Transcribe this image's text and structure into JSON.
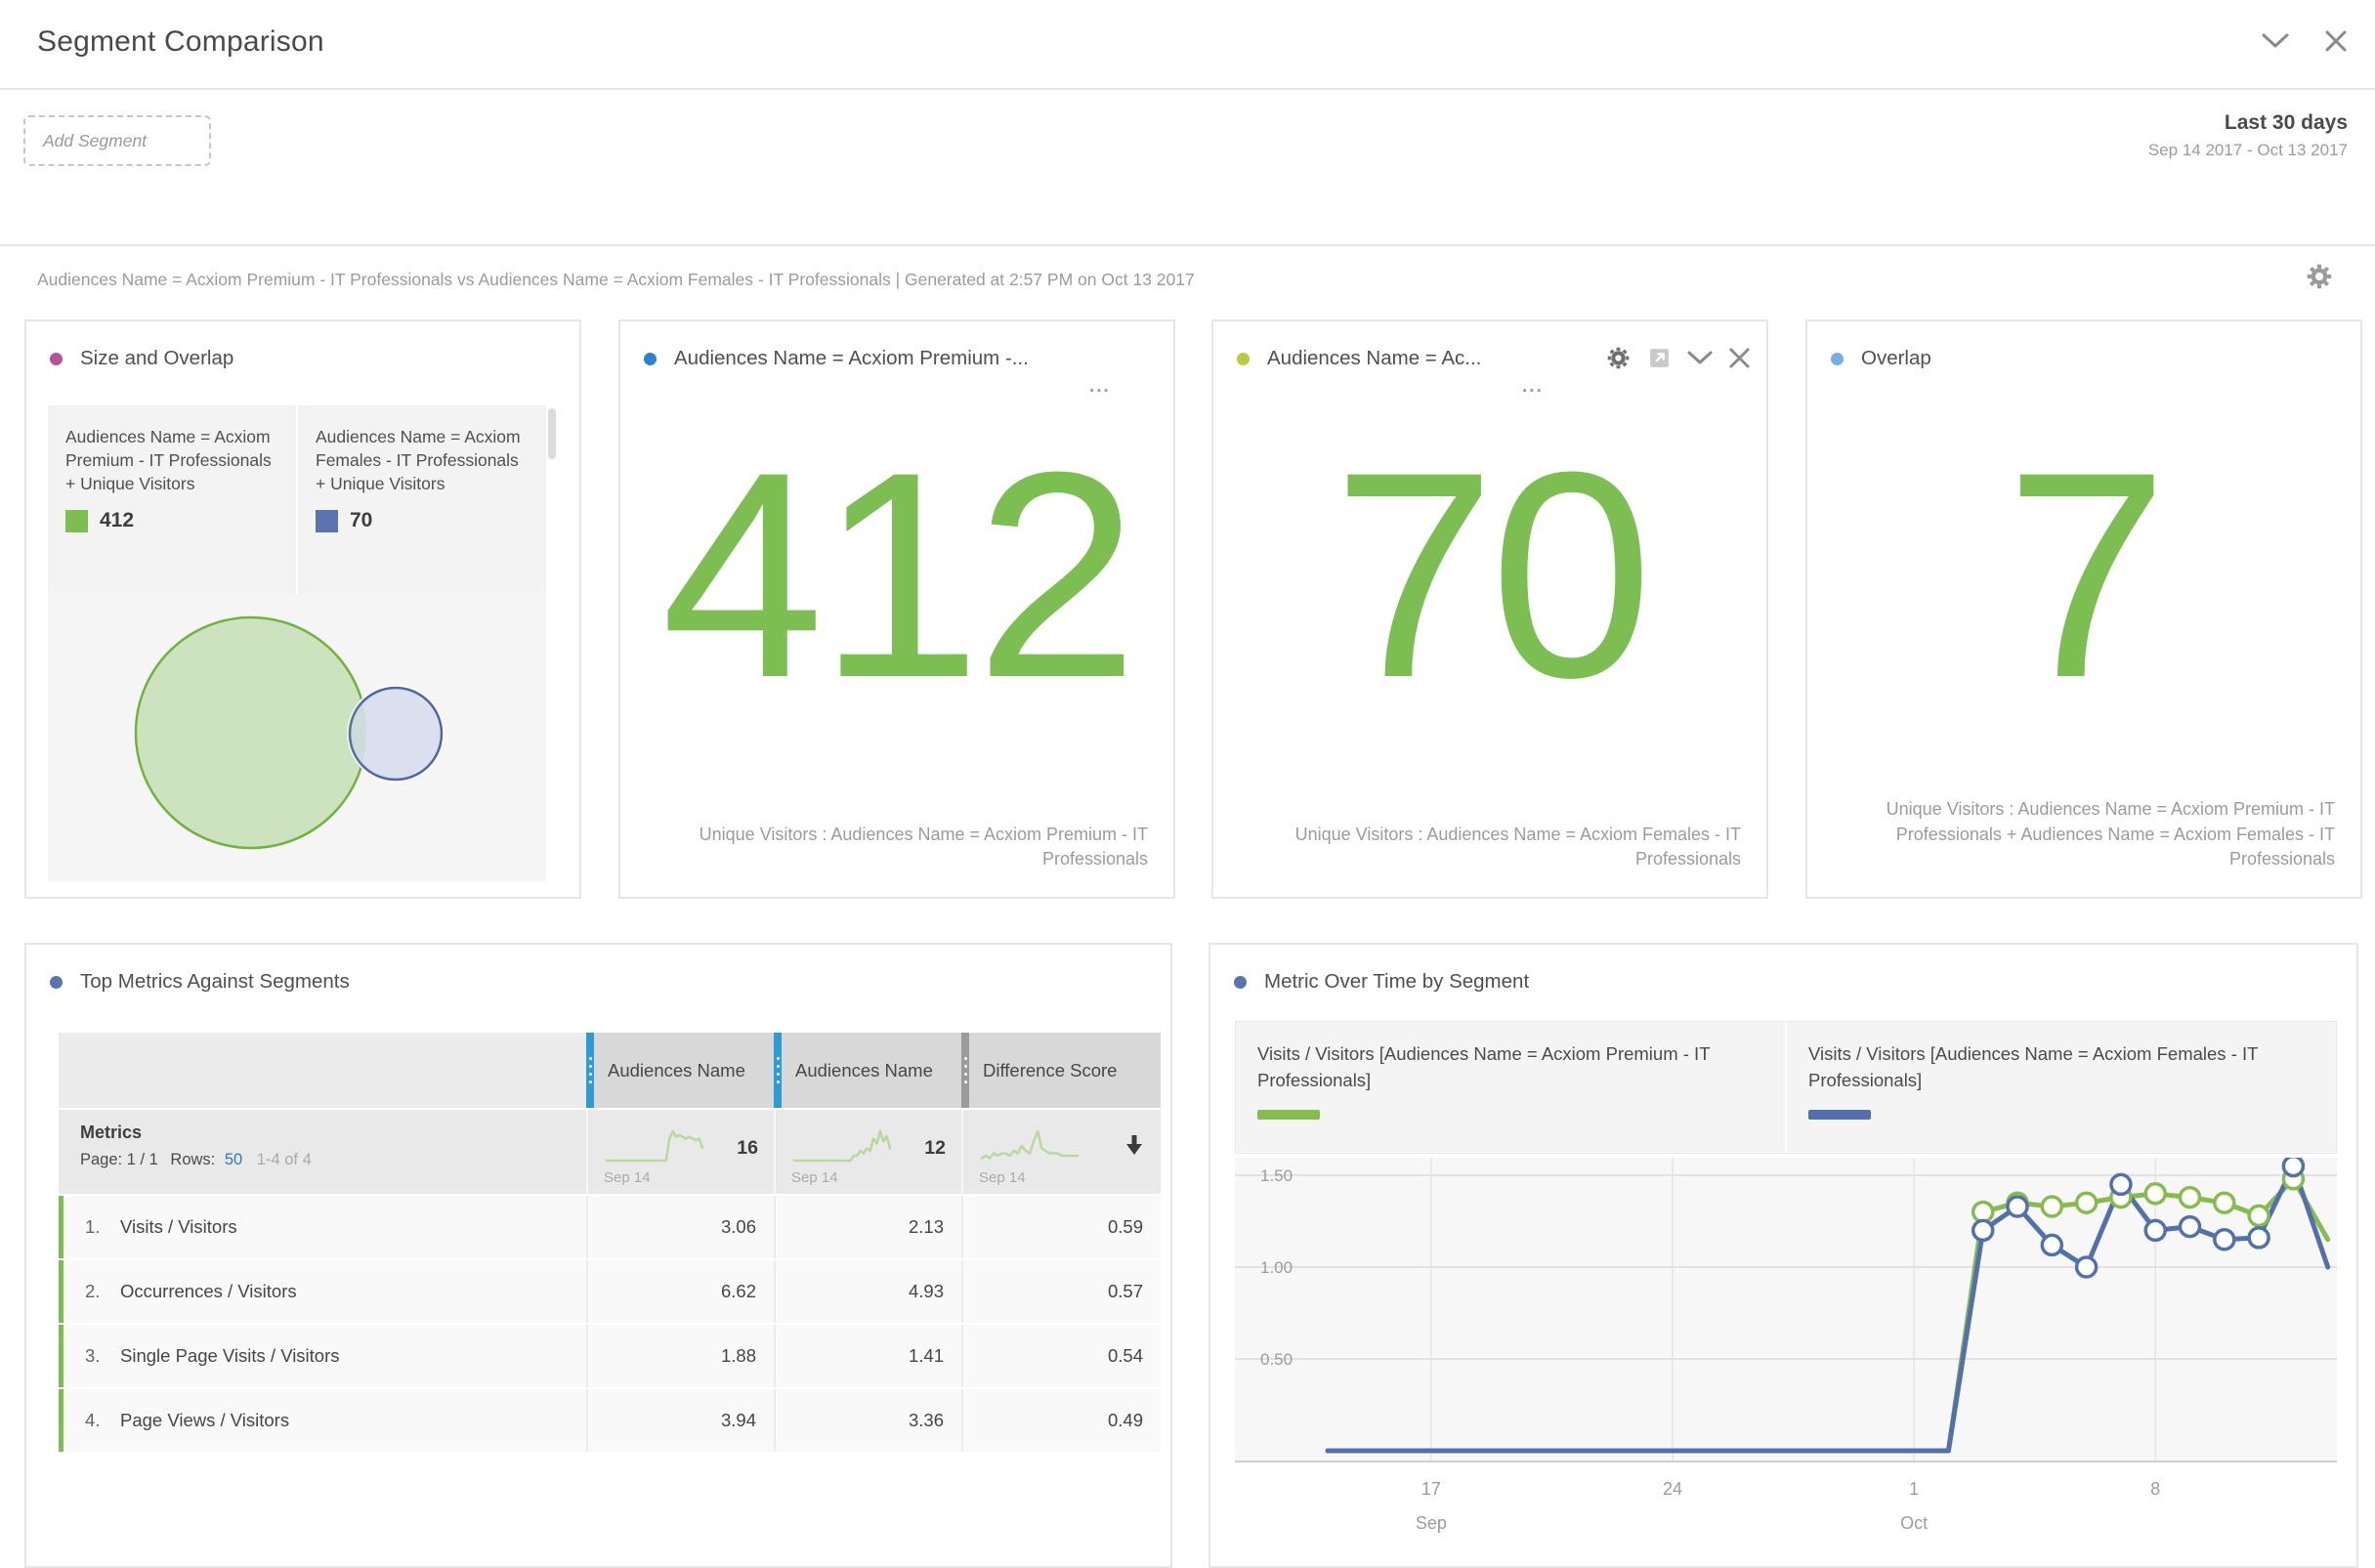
{
  "window": {
    "title": "Segment Comparison"
  },
  "toolbar": {
    "add_segment_label": "Add Segment",
    "date_range_label": "Last 30 days",
    "date_range": "Sep 14 2017 - Oct 13 2017"
  },
  "description": "Audiences Name = Acxiom Premium - IT Professionals vs Audiences Name = Acxiom Females - IT Professionals | Generated at 2:57 PM on Oct 13 2017",
  "colors": {
    "accent_green": "#7cbe52",
    "accent_indigo": "#5b74b0",
    "column_handle_blue": "#2c9cd7",
    "sparkline_green": "#b9d9a1"
  },
  "cards": {
    "size_overlap": {
      "title": "Size and Overlap",
      "dot_color": "#b8519c",
      "legend": [
        {
          "label": "Audiences Name = Acxiom Premium - IT Professionals + Unique Visitors",
          "value": "412",
          "color": "#7cbe52"
        },
        {
          "label": "Audiences Name = Acxiom Females - IT Professionals + Unique Visitors",
          "value": "70",
          "color": "#5b74b0"
        }
      ]
    },
    "premium": {
      "title": "Audiences Name = Acxiom Premium -...",
      "more": "...",
      "dot_color": "#2e82d4",
      "value": "412",
      "caption": "Unique Visitors : Audiences Name = Acxiom Premium - IT Professionals"
    },
    "females": {
      "title": "Audiences Name = Ac...",
      "more": "...",
      "dot_color": "#b9cb3c",
      "value": "70",
      "caption": "Unique Visitors : Audiences Name = Acxiom Females - IT Professionals"
    },
    "overlap": {
      "title": "Overlap",
      "dot_color": "#74aee8",
      "value": "7",
      "caption": "Unique Visitors : Audiences Name = Acxiom Premium - IT Professionals + Audiences Name = Acxiom Females - IT Professionals"
    },
    "top_metrics": {
      "title": "Top Metrics Against Segments",
      "dot_color": "#5b74b0",
      "columns": [
        "Audiences Name",
        "Audiences Name",
        "Difference Score"
      ],
      "metrics_label": "Metrics",
      "pagination": {
        "page_label": "Page: 1 / 1",
        "rows_label": "Rows:",
        "rows_value": "50",
        "range": "1-4 of 4"
      },
      "spark_date": "Sep 14",
      "spark_totals": [
        "16",
        "12"
      ],
      "rows": [
        {
          "index": "1.",
          "name": "Visits / Visitors",
          "values": [
            "3.06",
            "2.13",
            "0.59"
          ]
        },
        {
          "index": "2.",
          "name": "Occurrences / Visitors",
          "values": [
            "6.62",
            "4.93",
            "0.57"
          ]
        },
        {
          "index": "3.",
          "name": "Single Page Visits / Visitors",
          "values": [
            "1.88",
            "1.41",
            "0.54"
          ]
        },
        {
          "index": "4.",
          "name": "Page Views / Visitors",
          "values": [
            "3.94",
            "3.36",
            "0.49"
          ]
        }
      ]
    },
    "over_time": {
      "title": "Metric Over Time by Segment",
      "dot_color": "#5b74b0",
      "legend": [
        {
          "label": "Visits / Visitors [Audiences Name = Acxiom Premium - IT Professionals]",
          "color": "#86bc4c"
        },
        {
          "label": "Visits / Visitors [Audiences Name = Acxiom Females - IT Professionals]",
          "color": "#5270ae"
        }
      ]
    }
  },
  "chart_data": [
    {
      "id": "size_overlap_venn",
      "type": "venn",
      "title": "Size and Overlap",
      "sets": [
        {
          "label": "Audiences Name = Acxiom Premium - IT Professionals + Unique Visitors",
          "size": 412,
          "color": "#7cbe52"
        },
        {
          "label": "Audiences Name = Acxiom Females - IT Professionals + Unique Visitors",
          "size": 70,
          "color": "#5b74b0"
        }
      ],
      "overlap": 7
    },
    {
      "id": "metric_over_time",
      "type": "line",
      "title": "Metric Over Time by Segment",
      "x_unit": "day",
      "x_start": "Sep 14 2017",
      "x_end": "Oct 13 2017",
      "x_tick_labels": [
        {
          "index": 3,
          "label": "17",
          "sub": "Sep"
        },
        {
          "index": 10,
          "label": "24"
        },
        {
          "index": 17,
          "label": "1",
          "sub": "Oct"
        },
        {
          "index": 24,
          "label": "8"
        }
      ],
      "yticks": [
        0.5,
        1.0,
        1.5
      ],
      "ylim": [
        0,
        1.62
      ],
      "grid": true,
      "legend_position": "top",
      "marker_range": [
        19,
        28
      ],
      "series": [
        {
          "name": "Visits / Visitors [Audiences Name = Acxiom Premium - IT Professionals]",
          "color": "#86bc4c",
          "values": [
            0,
            0,
            0,
            0,
            0,
            0,
            0,
            0,
            0,
            0,
            0,
            0,
            0,
            0,
            0,
            0,
            0,
            0,
            0,
            1.3,
            1.35,
            1.33,
            1.35,
            1.38,
            1.4,
            1.38,
            1.35,
            1.28,
            1.48,
            1.15
          ]
        },
        {
          "name": "Visits / Visitors [Audiences Name = Acxiom Females - IT Professionals]",
          "color": "#5270ae",
          "values": [
            0,
            0,
            0,
            0,
            0,
            0,
            0,
            0,
            0,
            0,
            0,
            0,
            0,
            0,
            0,
            0,
            0,
            0,
            0,
            1.2,
            1.33,
            1.12,
            1.0,
            1.45,
            1.2,
            1.22,
            1.15,
            1.16,
            1.55,
            1.0
          ]
        }
      ]
    },
    {
      "id": "spark_premium",
      "type": "line",
      "title": "Audiences Name (Premium) sparkline",
      "start_label": "Sep 14",
      "total": 16,
      "values": [
        0,
        0,
        0,
        0,
        0,
        0,
        0,
        0,
        0,
        0,
        0,
        0,
        0,
        0,
        0,
        0,
        0,
        0,
        0,
        12,
        16,
        13,
        14,
        13,
        12,
        13,
        12,
        11,
        12,
        7
      ]
    },
    {
      "id": "spark_females",
      "type": "line",
      "title": "Audiences Name (Females) sparkline",
      "start_label": "Sep 14",
      "total": 12,
      "values": [
        0,
        0,
        0,
        0,
        0,
        0,
        0,
        0,
        0,
        0,
        0,
        0,
        0,
        0,
        0,
        0,
        0,
        0,
        2,
        2,
        4,
        3,
        5,
        4,
        9,
        7,
        12,
        8,
        10,
        5
      ]
    },
    {
      "id": "spark_difference",
      "type": "line",
      "title": "Difference Score sparkline",
      "start_label": "Sep 14",
      "sort": "desc",
      "values": [
        1,
        2,
        1,
        3,
        2,
        3,
        3,
        2,
        4,
        3,
        6,
        4,
        3,
        8,
        12,
        5,
        4,
        3,
        3,
        3,
        2,
        2,
        2,
        2,
        2
      ]
    }
  ]
}
